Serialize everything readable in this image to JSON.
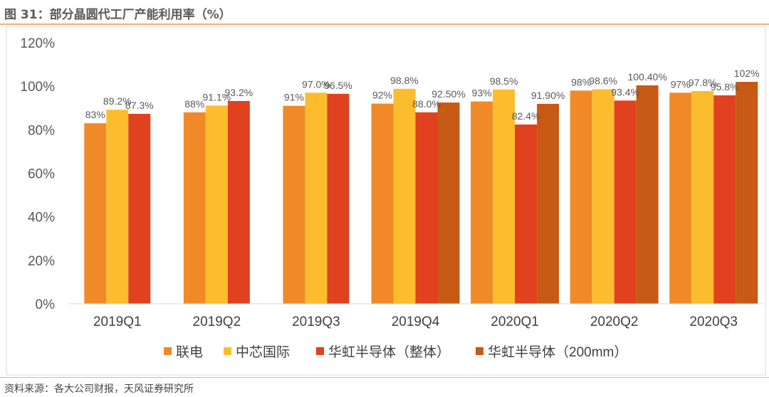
{
  "figure": {
    "title": "图 31：部分晶圆代工厂产能利用率（%）",
    "source": "资料来源：各大公司财报，天风证券研究所"
  },
  "chart_data": {
    "type": "bar",
    "categories": [
      "2019Q1",
      "2019Q2",
      "2019Q3",
      "2019Q4",
      "2020Q1",
      "2020Q2",
      "2020Q3"
    ],
    "ylim": [
      0,
      120
    ],
    "yticks": [
      0,
      20,
      40,
      60,
      80,
      100,
      120
    ],
    "ytick_labels": [
      "0%",
      "20%",
      "40%",
      "60%",
      "80%",
      "100%",
      "120%"
    ],
    "grid": false,
    "legend_position": "bottom",
    "series": [
      {
        "name": "联电",
        "color": "#f08a28",
        "values": [
          83,
          88,
          91,
          92,
          93,
          98,
          97
        ],
        "labels": [
          "83%",
          "88%",
          "91%",
          "92%",
          "93%",
          "98%",
          "97%"
        ]
      },
      {
        "name": "中芯国际",
        "color": "#fbbd2e",
        "values": [
          89.2,
          91.1,
          97.0,
          98.8,
          98.5,
          98.6,
          97.8
        ],
        "labels": [
          "89.2%",
          "91.1%",
          "97.0%",
          "98.8%",
          "98.5%",
          "98.6%",
          "97.8%"
        ]
      },
      {
        "name": "华虹半导体（整体）",
        "color": "#e0411e",
        "values": [
          87.3,
          93.2,
          96.5,
          88.0,
          82.4,
          93.4,
          95.8
        ],
        "labels": [
          "87.3%",
          "93.2%",
          "96.5%",
          "88.0%",
          "82.4%",
          "93.4%",
          "95.8%"
        ]
      },
      {
        "name": "华虹半导体（200mm）",
        "color": "#c75a14",
        "values": [
          null,
          null,
          null,
          92.5,
          91.9,
          100.4,
          102
        ],
        "labels": [
          null,
          null,
          null,
          "92.50%",
          "91.90%",
          "100.40%",
          "102%"
        ]
      }
    ]
  }
}
